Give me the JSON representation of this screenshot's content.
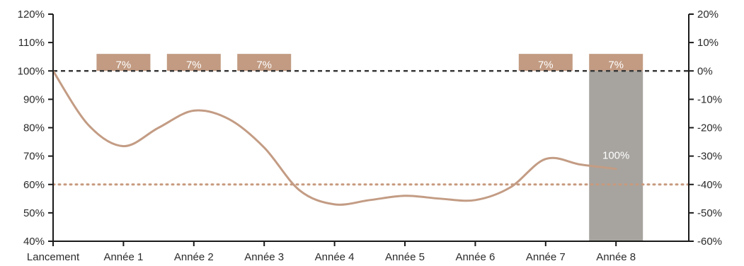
{
  "chart_data": {
    "type": "line",
    "categories": [
      "Lancement",
      "Année 1",
      "Année 2",
      "Année 3",
      "Année 4",
      "Année 5",
      "Année 6",
      "Année 7",
      "Année 8"
    ],
    "left_axis": {
      "ticks": [
        "40%",
        "50%",
        "60%",
        "70%",
        "80%",
        "90%",
        "100%",
        "110%",
        "120%"
      ],
      "ylim": [
        40,
        120
      ]
    },
    "right_axis": {
      "ticks": [
        "-60%",
        "-50%",
        "-40%",
        "-30%",
        "-20%",
        "-10%",
        "0%",
        "10%",
        "20%"
      ],
      "ylim": [
        -60,
        20
      ]
    },
    "series": [
      {
        "x": [
          0,
          0.5,
          1,
          1.5,
          2,
          2.5,
          3,
          3.5,
          4,
          4.5,
          5,
          5.5,
          6,
          6.5,
          7,
          7.5,
          8
        ],
        "values": [
          100,
          81,
          73.5,
          80,
          86,
          83,
          73,
          58,
          53,
          54.5,
          56,
          55,
          54.5,
          59,
          69,
          67,
          65.5
        ]
      }
    ],
    "reference_lines": [
      {
        "value": 100,
        "style": "dashed",
        "color": "#3a3a3a"
      },
      {
        "value": 60,
        "style": "dotted",
        "color": "#c79a7e"
      }
    ],
    "coupons": [
      {
        "category": "Année 1",
        "label": "7%"
      },
      {
        "category": "Année 2",
        "label": "7%"
      },
      {
        "category": "Année 3",
        "label": "7%"
      },
      {
        "category": "Année 7",
        "label": "7%"
      },
      {
        "category": "Année 8",
        "label": "7%"
      }
    ],
    "final_payout": {
      "category": "Année 8",
      "label": "100%",
      "from": 40,
      "to": 100
    },
    "colors": {
      "line": "#c39c84",
      "coupon": "#c29b82",
      "final_bar": "#a7a49f",
      "axis": "#1a1a1a"
    }
  }
}
